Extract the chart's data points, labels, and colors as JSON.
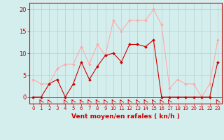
{
  "x": [
    0,
    1,
    2,
    3,
    4,
    5,
    6,
    7,
    8,
    9,
    10,
    11,
    12,
    13,
    14,
    15,
    16,
    17,
    18,
    19,
    20,
    21,
    22,
    23
  ],
  "vent_moyen": [
    0,
    0,
    3,
    4,
    0,
    3,
    8,
    4,
    7,
    9.5,
    10,
    8,
    12,
    12,
    11.5,
    13,
    0,
    0,
    0,
    0,
    0,
    0,
    0,
    8
  ],
  "rafales": [
    4,
    3,
    3,
    6.5,
    7.5,
    7.5,
    11.5,
    7.5,
    12,
    9.5,
    17.5,
    15,
    17.5,
    17.5,
    17.5,
    20,
    16.5,
    2,
    4,
    3,
    3,
    0,
    3,
    13
  ],
  "color_moyen": "#cc0000",
  "color_rafales": "#ffaaaa",
  "bg_color": "#d4eeee",
  "grid_color": "#bbcccc",
  "xlabel": "Vent moyen/en rafales ( kn/h )",
  "yticks": [
    0,
    5,
    10,
    15,
    20
  ],
  "xticks": [
    0,
    1,
    2,
    3,
    4,
    5,
    6,
    7,
    8,
    9,
    10,
    11,
    12,
    13,
    14,
    15,
    16,
    17,
    18,
    19,
    20,
    21,
    22,
    23
  ],
  "xlim": [
    -0.5,
    23.5
  ],
  "ylim": [
    -1.5,
    21.5
  ]
}
